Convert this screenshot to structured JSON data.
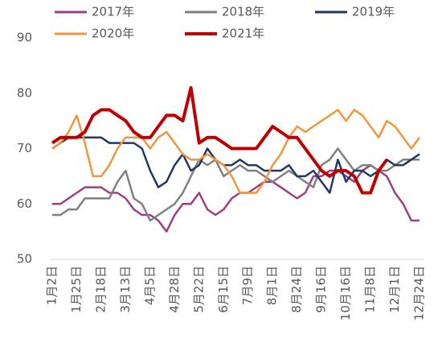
{
  "chart_data": {
    "type": "line",
    "categories": [
      "1月2日",
      null,
      null,
      "1月25日",
      null,
      null,
      "2月18日",
      null,
      null,
      "3月13日",
      null,
      null,
      "4月5日",
      null,
      null,
      "4月28日",
      null,
      null,
      "5月22日",
      null,
      null,
      "6月15日",
      null,
      null,
      "7月9日",
      null,
      null,
      "8月1日",
      null,
      null,
      "8月24日",
      null,
      null,
      "9月16日",
      null,
      null,
      "10月16日",
      null,
      null,
      "11月8日",
      null,
      null,
      "12月1日",
      null,
      null,
      "12月24日"
    ],
    "series": [
      {
        "name": "2017年",
        "color": "#9e3f86",
        "values": [
          60,
          60,
          61,
          62,
          63,
          63,
          63,
          62,
          62,
          61,
          59,
          58,
          58,
          57,
          55,
          58,
          60,
          60,
          62,
          59,
          58,
          59,
          61,
          62,
          62,
          63,
          64,
          64,
          63,
          62,
          61,
          62,
          65,
          65,
          66,
          66,
          65,
          64,
          66,
          67,
          66,
          65,
          62,
          60,
          57,
          57
        ]
      },
      {
        "name": "2018年",
        "color": "#808080",
        "values": [
          58,
          58,
          59,
          59,
          61,
          61,
          61,
          61,
          64,
          66,
          61,
          60,
          57,
          58,
          59,
          60,
          62,
          65,
          68,
          67,
          68,
          65,
          66,
          67,
          66,
          66,
          65,
          64,
          65,
          66,
          65,
          64,
          63,
          67,
          68,
          70,
          68,
          66,
          67,
          67,
          66,
          66,
          67,
          68,
          68,
          68
        ]
      },
      {
        "name": "2019年",
        "color": "#1f3864",
        "values": [
          70,
          71,
          72,
          72,
          72,
          72,
          72,
          71,
          71,
          71,
          71,
          70,
          66,
          63,
          64,
          67,
          69,
          66,
          67,
          70,
          68,
          67,
          67,
          68,
          67,
          67,
          66,
          66,
          66,
          67,
          65,
          65,
          66,
          64,
          62,
          68,
          64,
          66,
          66,
          65,
          66,
          68,
          67,
          67,
          68,
          69
        ]
      },
      {
        "name": "2020年",
        "color": "#f0963c",
        "values": [
          70,
          71,
          73,
          76,
          71,
          65,
          65,
          67,
          70,
          72,
          72,
          72,
          70,
          72,
          73,
          71,
          69,
          68,
          68,
          69,
          68,
          67,
          65,
          62,
          62,
          62,
          64,
          67,
          69,
          72,
          74,
          73,
          74,
          75,
          76,
          77,
          75,
          77,
          76,
          74,
          72,
          75,
          74,
          72,
          70,
          72
        ]
      },
      {
        "name": "2021年",
        "color": "#c00000",
        "values": [
          71,
          72,
          72,
          72,
          73,
          76,
          77,
          77,
          76,
          75,
          73,
          72,
          72,
          74,
          76,
          76,
          75,
          81,
          71,
          72,
          72,
          71,
          70,
          70,
          70,
          70,
          72,
          74,
          73,
          72,
          72,
          70,
          68,
          66,
          65,
          66,
          66,
          65,
          62,
          62,
          66,
          68,
          null,
          null,
          null,
          null
        ]
      }
    ],
    "ylim": [
      50,
      90
    ],
    "yticks": [
      50,
      60,
      70,
      80,
      90
    ],
    "grid": false,
    "legend": "top"
  }
}
